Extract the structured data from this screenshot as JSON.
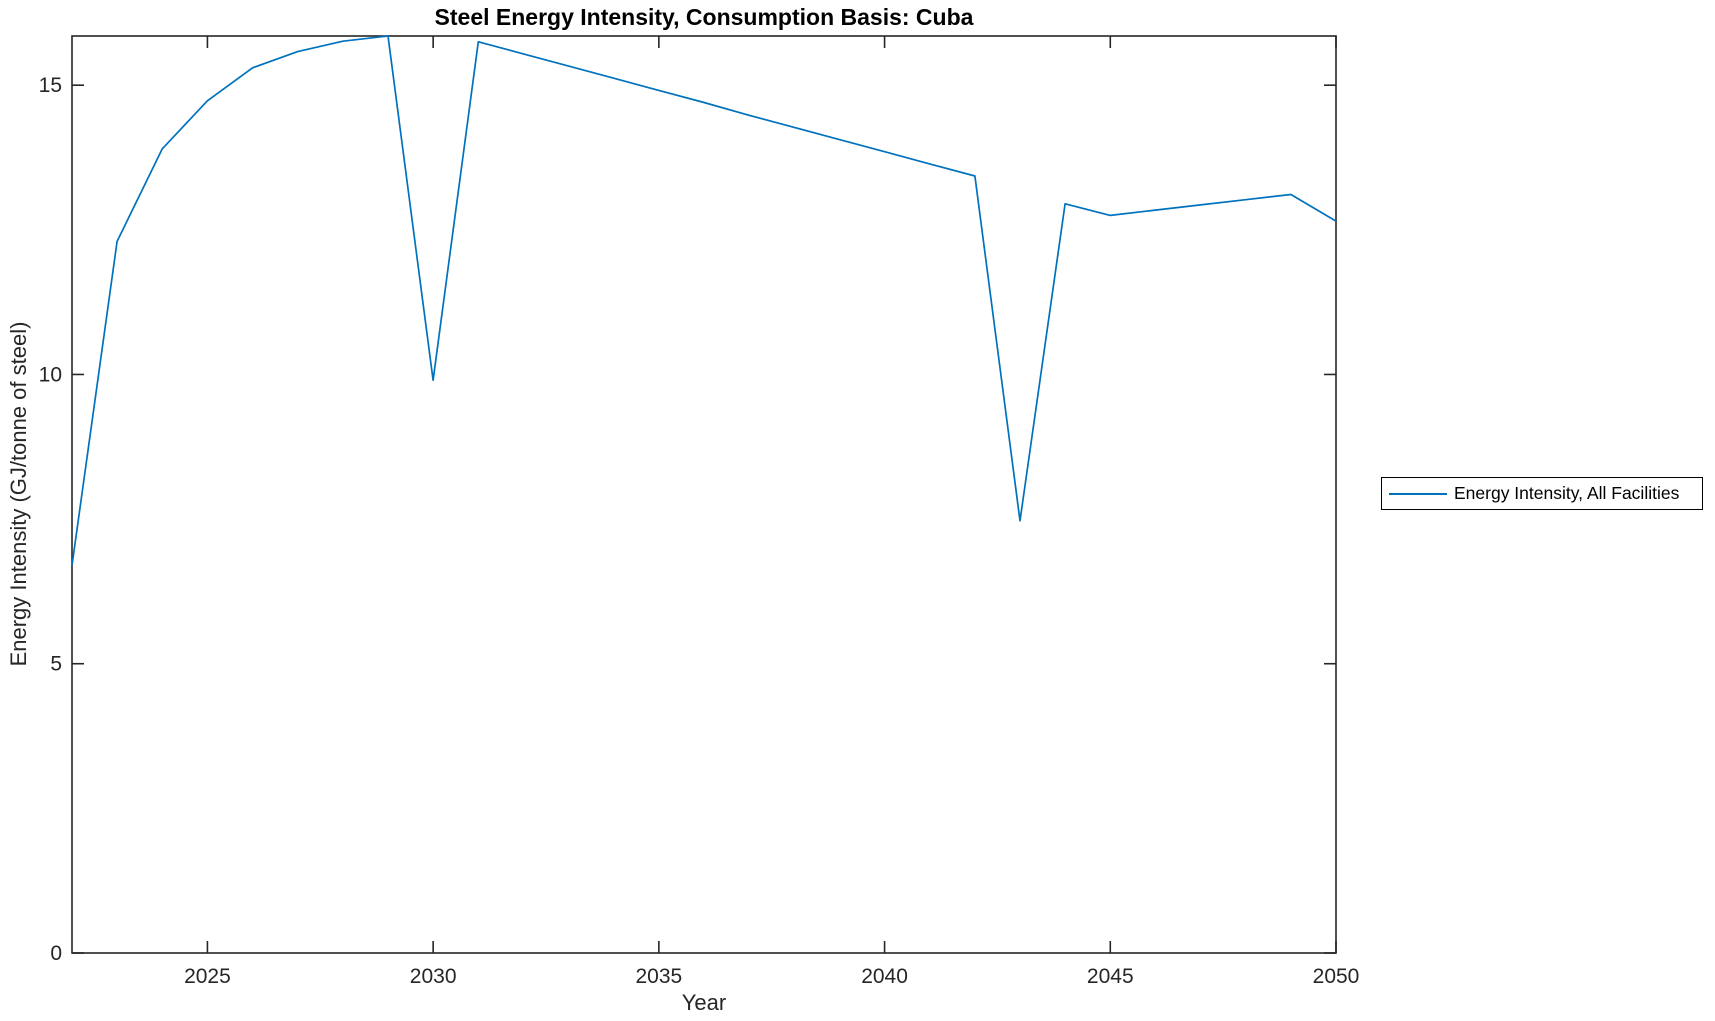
{
  "figure": {
    "background": "#ffffff"
  },
  "chart_data": {
    "type": "line",
    "title": "Steel Energy Intensity, Consumption Basis: Cuba",
    "xlabel": "Year",
    "ylabel": "Energy Intensity (GJ/tonne of steel)",
    "xlim": [
      2022,
      2050
    ],
    "ylim": [
      0,
      15.85
    ],
    "xticks": [
      2025,
      2030,
      2035,
      2040,
      2045,
      2050
    ],
    "yticks": [
      0,
      5,
      10,
      15
    ],
    "grid": false,
    "box": true,
    "tick_direction": "in",
    "line_color": "#0072BD",
    "axis_color": "#262626",
    "legend": {
      "position": "outside-right",
      "entries": [
        {
          "label": "Energy Intensity, All Facilities",
          "color": "#0072BD"
        }
      ]
    },
    "series": [
      {
        "name": "Energy Intensity, All Facilities",
        "x": [
          2022,
          2023,
          2024,
          2025,
          2026,
          2027,
          2028,
          2029,
          2030,
          2031,
          2032,
          2033,
          2034,
          2035,
          2036,
          2037,
          2038,
          2039,
          2040,
          2041,
          2042,
          2043,
          2044,
          2045,
          2046,
          2047,
          2048,
          2049,
          2050
        ],
        "y": [
          6.7,
          12.3,
          13.9,
          14.73,
          15.3,
          15.58,
          15.76,
          15.85,
          9.9,
          15.75,
          15.54,
          15.33,
          15.12,
          14.91,
          14.7,
          14.48,
          14.27,
          14.06,
          13.85,
          13.64,
          13.43,
          7.47,
          12.95,
          12.75,
          12.84,
          12.93,
          13.02,
          13.11,
          12.65
        ]
      }
    ]
  }
}
